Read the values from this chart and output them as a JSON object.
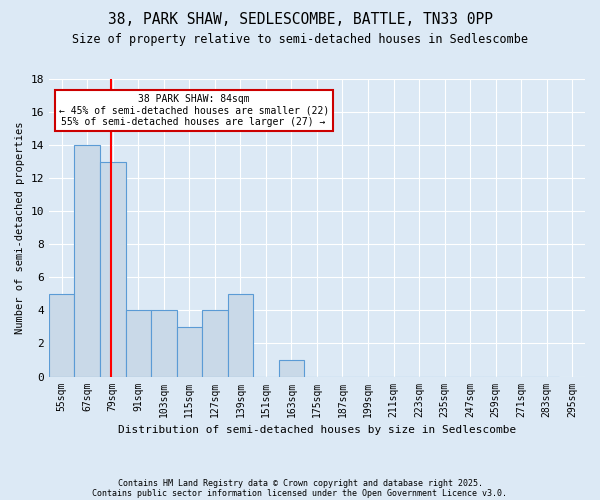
{
  "title": "38, PARK SHAW, SEDLESCOMBE, BATTLE, TN33 0PP",
  "subtitle": "Size of property relative to semi-detached houses in Sedlescombe",
  "xlabel": "Distribution of semi-detached houses by size in Sedlescombe",
  "ylabel": "Number of semi-detached properties",
  "bar_edges": [
    55,
    67,
    79,
    91,
    103,
    115,
    127,
    139,
    151,
    163,
    175,
    187,
    199,
    211,
    223,
    235,
    247,
    259,
    271,
    283,
    295
  ],
  "bar_heights": [
    5,
    14,
    13,
    4,
    4,
    3,
    4,
    5,
    0,
    1,
    0,
    0,
    0,
    0,
    0,
    0,
    0,
    0,
    0,
    0
  ],
  "bar_color": "#c9d9e8",
  "bar_edge_color": "#5b9bd5",
  "red_line_x": 84,
  "annotation_title": "38 PARK SHAW: 84sqm",
  "annotation_line1": "← 45% of semi-detached houses are smaller (22)",
  "annotation_line2": "55% of semi-detached houses are larger (27) →",
  "annotation_box_color": "#ffffff",
  "annotation_box_edge": "#cc0000",
  "ylim": [
    0,
    18
  ],
  "yticks": [
    0,
    2,
    4,
    6,
    8,
    10,
    12,
    14,
    16,
    18
  ],
  "tick_labels": [
    "55sqm",
    "67sqm",
    "79sqm",
    "91sqm",
    "103sqm",
    "115sqm",
    "127sqm",
    "139sqm",
    "151sqm",
    "163sqm",
    "175sqm",
    "187sqm",
    "199sqm",
    "211sqm",
    "223sqm",
    "235sqm",
    "247sqm",
    "259sqm",
    "271sqm",
    "283sqm",
    "295sqm"
  ],
  "footnote1": "Contains HM Land Registry data © Crown copyright and database right 2025.",
  "footnote2": "Contains public sector information licensed under the Open Government Licence v3.0.",
  "bg_color": "#dce9f5",
  "plot_bg_color": "#dce9f5",
  "title_fontsize": 10.5,
  "subtitle_fontsize": 8.5,
  "footnote_fontsize": 6.0
}
